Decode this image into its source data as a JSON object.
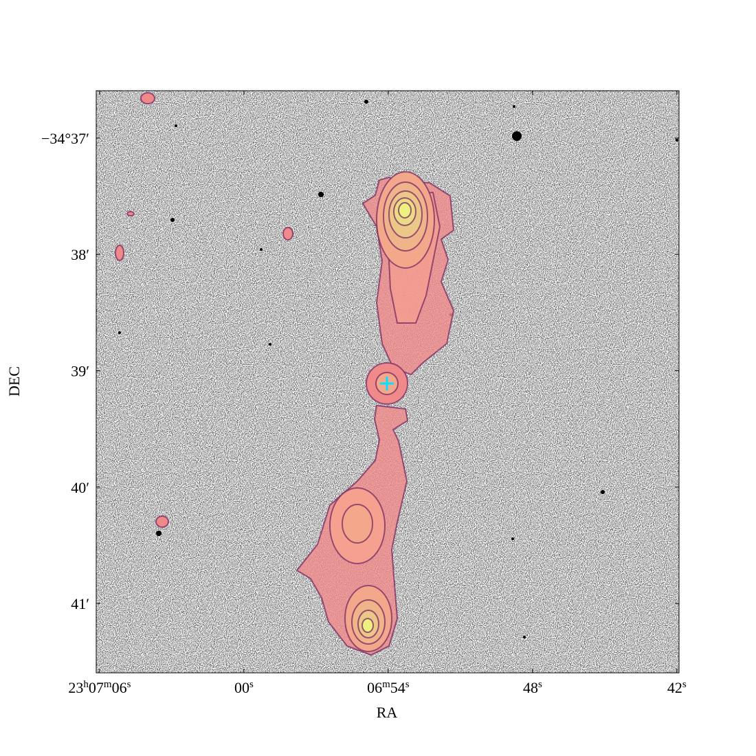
{
  "chart_data": {
    "type": "image",
    "x_label": "RA",
    "y_label": "DEC",
    "xlim": [
      66.14,
      41.91
    ],
    "xticks": [
      {
        "value": 66,
        "label": "23h07m06s"
      },
      {
        "value": 60,
        "label": "00s"
      },
      {
        "value": 54,
        "label": "06m54s"
      },
      {
        "value": 48,
        "label": "48s"
      },
      {
        "value": 42,
        "label": "42s"
      }
    ],
    "ylim": [
      -34.60988,
      -34.69327
    ],
    "yticks": [
      {
        "value": -34.61667,
        "label": "−34°37′"
      },
      {
        "value": -34.63333,
        "label": "38′"
      },
      {
        "value": -34.65,
        "label": "39′"
      },
      {
        "value": -34.66667,
        "label": "40′"
      },
      {
        "value": -34.68333,
        "label": "41′"
      }
    ]
  }
}
